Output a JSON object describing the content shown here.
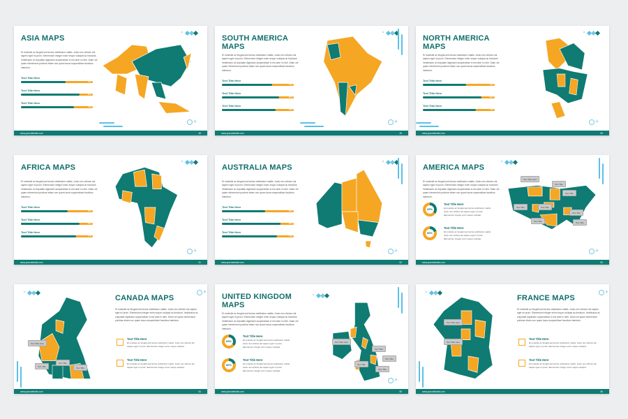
{
  "colors": {
    "teal": "#0f7b73",
    "orange": "#f5a623",
    "light_blue": "#5bc0e6",
    "title": "#0f6e6a"
  },
  "footer_url": "www.yourwebsite.com",
  "paragraph": "Et molestie ac feugiat sed lectus vestibulum mattis. Justo nec ultrices dui sapien eget mi proin. Elementum integer enim neque volutpat ac tincidunt. Vestibulum at vulputate dignissim suspendisse in est ante in nibh. Diam vel quam elementum pulvinar etiam non quam lacus suspendisse faucibus interdum.",
  "item_text": "Et molestie ac feugiat sed lectus vestibulum mattis. Justo nec ultrices dui sapien eget mi proin. Elementum integer enim neque volutpat.",
  "slides": [
    {
      "id": "asia",
      "layout": "bars",
      "title": "ASIA MAPS",
      "page": "48",
      "bars": [
        {
          "label": "Text Title Here",
          "percent": 62
        },
        {
          "label": "Text Title Here",
          "percent": 82
        },
        {
          "label": "Text Title Here",
          "percent": 74
        }
      ]
    },
    {
      "id": "south-america",
      "layout": "bars",
      "title": "SOUTH AMERICA MAPS",
      "page": "49",
      "bars": [
        {
          "label": "Text Title Here",
          "percent": 70
        },
        {
          "label": "Text Title Here",
          "percent": 80
        },
        {
          "label": "Text Title Here",
          "percent": 75
        }
      ]
    },
    {
      "id": "north-america",
      "layout": "bars",
      "title": "NORTH AMERICA MAPS",
      "page": "50",
      "bars": [
        {
          "label": "Text Title Here",
          "percent": 60
        },
        {
          "label": "Text Title Here",
          "percent": 82
        },
        {
          "label": "Text Title Here",
          "percent": 74
        }
      ]
    },
    {
      "id": "africa",
      "layout": "bars",
      "title": "AFRICA MAPS",
      "page": "51",
      "bars": [
        {
          "label": "Text Title Here",
          "percent": 65
        },
        {
          "label": "Text Title Here",
          "percent": 82
        },
        {
          "label": "Text Title Here",
          "percent": 77
        }
      ]
    },
    {
      "id": "australia",
      "layout": "bars",
      "title": "AUSTRALIA MAPS",
      "page": "52",
      "bars": [
        {
          "label": "Text Title Here",
          "percent": 60
        },
        {
          "label": "Text Title Here",
          "percent": 82
        },
        {
          "label": "Text Title Here",
          "percent": 77
        }
      ]
    },
    {
      "id": "america",
      "layout": "donuts",
      "title": "AMERICA MAPS",
      "page": "53",
      "items": [
        {
          "title": "Text Title Here",
          "percent": 65
        },
        {
          "title": "Text Title Here",
          "percent": 80
        }
      ],
      "callouts": [
        "Text Title Here",
        "Text Title",
        "Text Title",
        "Text Title",
        "Text Title",
        "Text Title",
        "Text Title",
        "Text Title"
      ]
    },
    {
      "id": "canada",
      "layout": "icons",
      "title": "CANADA MAPS",
      "page": "54",
      "items": [
        {
          "title": "Text Title Here",
          "icon": "bar-chart-icon"
        },
        {
          "title": "Text Title Here",
          "icon": "bar-chart-icon"
        }
      ],
      "callouts": [
        "Text Title Here",
        "Text Title",
        "Text Title",
        "Text Title"
      ]
    },
    {
      "id": "united-kingdom",
      "layout": "donuts",
      "title": "UNITED KINGDOM MAPS",
      "page": "55",
      "items": [
        {
          "title": "Text Title Here",
          "percent": 65
        },
        {
          "title": "Text Title Here",
          "percent": 80
        }
      ],
      "callouts": [
        "Text Title Here",
        "Text Title",
        "Text Title",
        "Text Title",
        "Text Title"
      ]
    },
    {
      "id": "france",
      "layout": "icons",
      "title": "FRANCE MAPS",
      "page": "56",
      "items": [
        {
          "title": "Text Title Here",
          "icon": "bar-chart-icon"
        },
        {
          "title": "Text Title Here",
          "icon": "bar-chart-icon"
        }
      ],
      "callouts": [
        "Text Title Here",
        "Text Title Here"
      ]
    }
  ]
}
